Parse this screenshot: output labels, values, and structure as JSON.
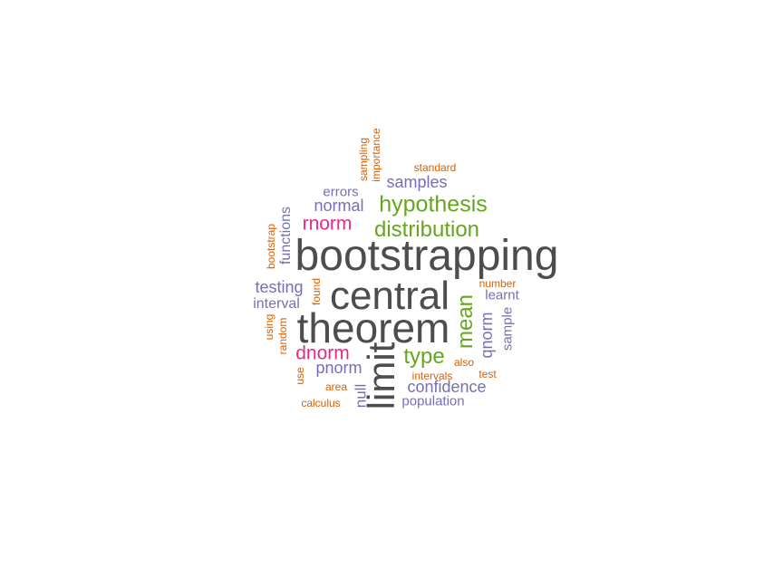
{
  "palette": {
    "gray": "#4d4d4d",
    "green": "#66a61e",
    "purple": "#7570b3",
    "pink": "#e7298a",
    "orange": "#d95f02"
  },
  "words": {
    "bootstrapping": "bootstrapping",
    "central": "central",
    "theorem": "theorem",
    "limit": "limit",
    "hypothesis": "hypothesis",
    "distribution": "distribution",
    "mean": "mean",
    "type": "type",
    "rnorm": "rnorm",
    "dnorm": "dnorm",
    "samples": "samples",
    "normal": "normal",
    "errors": "errors",
    "testing": "testing",
    "interval": "interval",
    "functions": "functions",
    "bootstrap": "bootstrap",
    "sampling": "sampling",
    "importance": "importance",
    "standard": "standard",
    "number": "number",
    "learnt": "learnt",
    "found": "found",
    "using": "using",
    "random": "random",
    "use": "use",
    "pnorm": "pnorm",
    "qnorm": "qnorm",
    "sample": "sample",
    "also": "also",
    "test": "test",
    "intervals": "intervals",
    "confidence": "confidence",
    "null": "null",
    "area": "area",
    "calculus": "calculus",
    "population": "population"
  }
}
